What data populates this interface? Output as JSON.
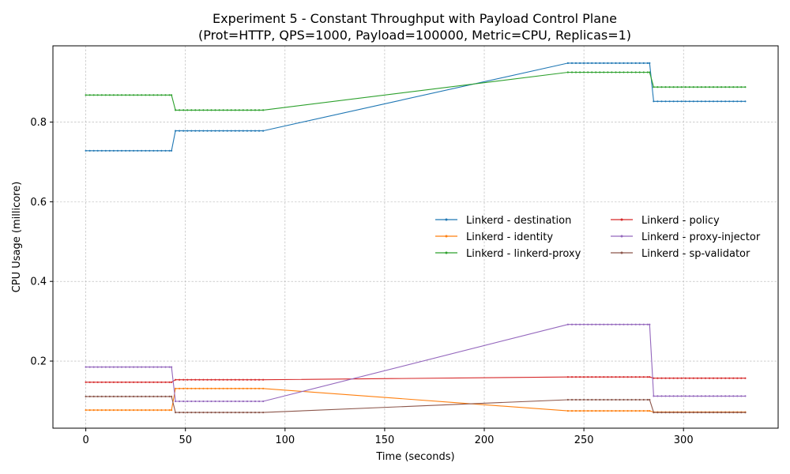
{
  "chart_data": {
    "type": "line",
    "title": "Experiment 5 - Constant Throughput with Payload Control Plane",
    "subtitle": "(Prot=HTTP, QPS=1000, Payload=100000, Metric=CPU, Replicas=1)",
    "xlabel": "Time (seconds)",
    "ylabel": "CPU Usage (millicore)",
    "xlim": [
      -16.5,
      347.5
    ],
    "ylim": [
      0.0315,
      0.9915
    ],
    "xticks": [
      0,
      50,
      100,
      150,
      200,
      250,
      300
    ],
    "yticks": [
      0.2,
      0.4,
      0.6,
      0.8
    ],
    "xtick_labels": [
      "0",
      "50",
      "100",
      "150",
      "200",
      "250",
      "300"
    ],
    "ytick_labels": [
      "0.2",
      "0.4",
      "0.6",
      "0.8"
    ],
    "grid": true,
    "legend_position": "center-right",
    "legend_columns": 2,
    "segments": [
      {
        "start": 0,
        "end": 43
      },
      {
        "start": 45,
        "end": 89
      },
      {
        "start": 242,
        "end": 283
      },
      {
        "start": 285,
        "end": 331
      }
    ],
    "series": [
      {
        "name": "Linkerd - destination",
        "color": "#1f77b4",
        "levels": [
          0.728,
          0.778,
          0.948,
          0.852
        ]
      },
      {
        "name": "Linkerd - identity",
        "color": "#ff7f0e",
        "levels": [
          0.077,
          0.131,
          0.075,
          0.072
        ]
      },
      {
        "name": "Linkerd - linkerd-proxy",
        "color": "#2ca02c",
        "levels": [
          0.868,
          0.83,
          0.925,
          0.888
        ]
      },
      {
        "name": "Linkerd - policy",
        "color": "#d62728",
        "levels": [
          0.147,
          0.153,
          0.16,
          0.157
        ]
      },
      {
        "name": "Linkerd - proxy-injector",
        "color": "#9467bd",
        "levels": [
          0.185,
          0.099,
          0.292,
          0.112
        ]
      },
      {
        "name": "Linkerd - sp-validator",
        "color": "#8c564b",
        "levels": [
          0.111,
          0.071,
          0.103,
          0.071
        ]
      }
    ]
  }
}
